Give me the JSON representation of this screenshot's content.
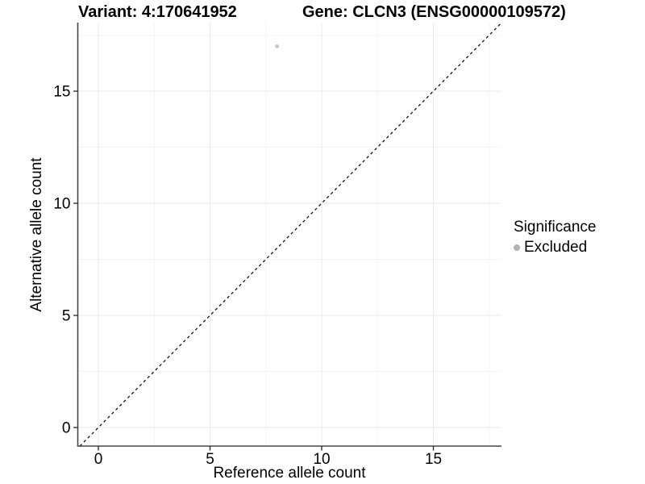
{
  "chart_data": {
    "type": "scatter",
    "title_left": "Variant: 4:170641952",
    "title_right": "Gene: CLCN3 (ENSG00000109572)",
    "xlabel": "Reference allele count",
    "ylabel": "Alternative allele count",
    "xlim": [
      -0.92,
      18.05
    ],
    "ylim": [
      -0.83,
      18.06
    ],
    "xticks": [
      0,
      5,
      10,
      15
    ],
    "yticks": [
      0,
      5,
      10,
      15
    ],
    "xticks_minor": [
      2.5,
      7.5,
      12.5,
      17.5
    ],
    "yticks_minor": [
      2.5,
      7.5,
      12.5,
      17.5
    ],
    "grid": "major+minor",
    "legend_position": "right",
    "points": [
      {
        "x": 8,
        "y": 17,
        "series": "Excluded"
      }
    ],
    "reference_line": {
      "type": "abline",
      "slope": 1,
      "intercept": 0,
      "style": "dashed"
    },
    "legend": {
      "title": "Significance",
      "items": [
        {
          "label": "Excluded",
          "color": "#b2b2b2"
        }
      ]
    },
    "colors": {
      "point": "#c6c6c6",
      "legend_key": "#b2b2b2",
      "grid_major": "#e9e9e9",
      "grid_minor": "#f4f4f4",
      "axis_line": "#474747",
      "tick_mark": "#333333",
      "reference_line": "#000000",
      "background": "#ffffff"
    }
  }
}
